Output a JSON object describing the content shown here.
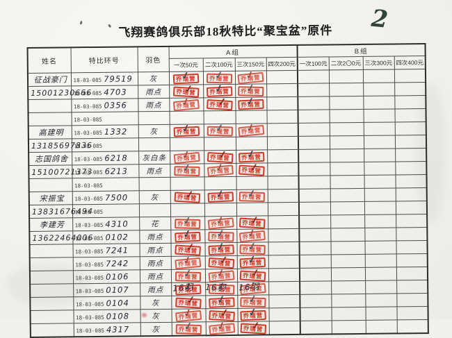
{
  "page": {
    "title": "飞翔赛鸽俱乐部18秋特比“聚宝盆”原件",
    "page_number": "2"
  },
  "table": {
    "headers": {
      "name": "姓名",
      "ring": "特比环号",
      "color": "羽色",
      "group_a": "A组",
      "group_b": "B组",
      "a_cols": [
        "一次50元",
        "二次100元",
        "三次150元",
        "四次200元"
      ],
      "b_cols": [
        "一次100元",
        "二次2〇0元",
        "三次300元",
        "四次400元"
      ]
    },
    "stamp_text": "乔瑞营",
    "check_glyph": "✓",
    "rows": [
      {
        "name": "征战豪门",
        "ring_prefix": "18-03-085",
        "ring_suffix": "79519",
        "color": "灰",
        "stamps": [
          1,
          1,
          1,
          0,
          0,
          0,
          0,
          0
        ]
      },
      {
        "name": "15001230666",
        "ring_prefix": "18-03-085",
        "ring_suffix": "4703",
        "color": "雨点",
        "stamps": [
          1,
          1,
          1,
          0,
          0,
          0,
          0,
          0
        ]
      },
      {
        "name": "",
        "ring_prefix": "18-03-085",
        "ring_suffix": "0356",
        "color": "雨点",
        "stamps": [
          1,
          1,
          1,
          0,
          0,
          0,
          0,
          0
        ]
      },
      {
        "name": "",
        "ring_prefix": "18-03-085",
        "ring_suffix": "",
        "color": "",
        "stamps": [
          0,
          0,
          0,
          0,
          0,
          0,
          0,
          0
        ]
      },
      {
        "name": "高建明",
        "ring_prefix": "18-03-085",
        "ring_suffix": "1332",
        "color": "灰",
        "stamps": [
          1,
          1,
          1,
          0,
          0,
          0,
          0,
          0
        ]
      },
      {
        "name": "13185697836",
        "ring_prefix": "18-03-085",
        "ring_suffix": "",
        "color": "",
        "stamps": [
          0,
          0,
          0,
          0,
          0,
          0,
          0,
          0
        ]
      },
      {
        "name": "志国鸽舍",
        "ring_prefix": "18-03-085",
        "ring_suffix": "6218",
        "color": "灰白条",
        "stamps": [
          1,
          1,
          1,
          0,
          0,
          0,
          0,
          0
        ]
      },
      {
        "name": "15100721373",
        "ring_prefix": "18-03-085",
        "ring_suffix": "6213",
        "color": "雨点",
        "stamps": [
          1,
          1,
          1,
          0,
          0,
          0,
          0,
          0
        ]
      },
      {
        "name": "",
        "ring_prefix": "18-03-085",
        "ring_suffix": "",
        "color": "",
        "stamps": [
          0,
          0,
          0,
          0,
          0,
          0,
          0,
          0
        ]
      },
      {
        "name": "宋振宝",
        "ring_prefix": "18-03-085",
        "ring_suffix": "7500",
        "color": "灰",
        "stamps": [
          1,
          1,
          1,
          0,
          0,
          0,
          0,
          0
        ]
      },
      {
        "name": "13831676494",
        "ring_prefix": "18-03-085",
        "ring_suffix": "",
        "color": "",
        "stamps": [
          0,
          0,
          0,
          0,
          0,
          0,
          0,
          0
        ]
      },
      {
        "name": "李建芳",
        "ring_prefix": "18-03-085",
        "ring_suffix": "4310",
        "color": "花",
        "stamps": [
          1,
          1,
          1,
          0,
          0,
          0,
          0,
          0
        ]
      },
      {
        "name": "13622464006",
        "ring_prefix": "18-03-085",
        "ring_suffix": "0102",
        "color": "雨点",
        "stamps": [
          1,
          1,
          1,
          0,
          0,
          0,
          0,
          0
        ]
      },
      {
        "name": "",
        "ring_prefix": "18-03-085",
        "ring_suffix": "7241",
        "color": "雨点",
        "stamps": [
          1,
          1,
          1,
          0,
          0,
          0,
          0,
          0
        ]
      },
      {
        "name": "",
        "ring_prefix": "18-03-085",
        "ring_suffix": "7242",
        "color": "雨点",
        "stamps": [
          1,
          1,
          1,
          0,
          0,
          0,
          0,
          0
        ]
      },
      {
        "name": "",
        "ring_prefix": "18-03-085",
        "ring_suffix": "0106",
        "color": "雨点",
        "stamps": [
          1,
          1,
          1,
          0,
          0,
          0,
          0,
          0
        ]
      },
      {
        "name": "",
        "ring_prefix": "18-03-085",
        "ring_suffix": "0107",
        "color": "雨点",
        "stamps": [
          1,
          1,
          1,
          0,
          0,
          0,
          0,
          0
        ]
      },
      {
        "name": "",
        "ring_prefix": "18-03-085",
        "ring_suffix": "0104",
        "color": "灰",
        "stamps": [
          1,
          1,
          1,
          0,
          0,
          0,
          0,
          0
        ]
      },
      {
        "name": "",
        "ring_prefix": "18-03-085",
        "ring_suffix": "0108",
        "color": "灰",
        "stamps": [
          1,
          1,
          1,
          0,
          0,
          0,
          0,
          0
        ]
      },
      {
        "name": "",
        "ring_prefix": "18-03-085",
        "ring_suffix": "4317",
        "color": "灰",
        "stamps": [
          1,
          1,
          1,
          0,
          0,
          0,
          0,
          0
        ]
      }
    ],
    "footer_counts": [
      "16羽",
      "16羽",
      "16羽"
    ]
  }
}
